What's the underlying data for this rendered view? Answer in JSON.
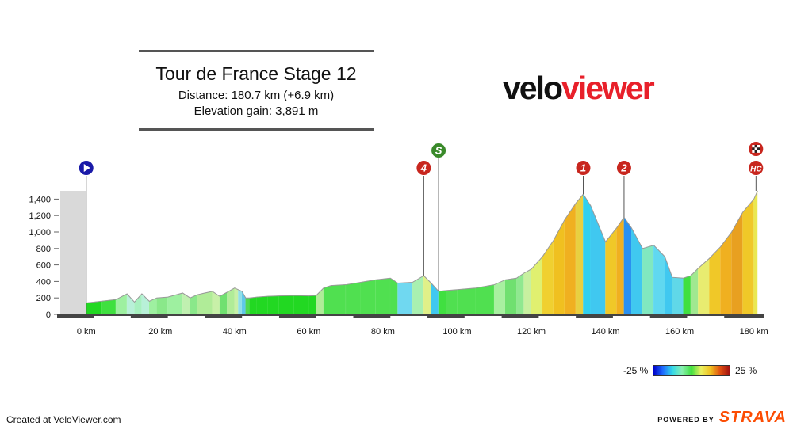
{
  "header": {
    "title": "Tour de France Stage 12",
    "distance": "Distance: 180.7 km (+6.9 km)",
    "elevation": "Elevation gain: 3,891 m"
  },
  "brand": {
    "logo_part1": "velo",
    "logo_part2": "viewer",
    "dark": "#111111",
    "red": "#e8202a"
  },
  "footer": {
    "created": "Created at VeloViewer.com",
    "powered": "POWERED BY",
    "strava": "STRAVA",
    "strava_color": "#fc4c02"
  },
  "legend": {
    "min_label": "-25 %",
    "max_label": "25 %"
  },
  "chart_data": {
    "type": "area",
    "xlabel": "",
    "ylabel": "",
    "xlim": [
      -7,
      182
    ],
    "ylim": [
      0,
      1500
    ],
    "x_ticks": [
      0,
      20,
      40,
      60,
      80,
      100,
      120,
      140,
      160,
      180
    ],
    "x_tick_labels": [
      "0 km",
      "20 km",
      "40 km",
      "60 km",
      "80 km",
      "100 km",
      "120 km",
      "140 km",
      "160 km",
      "180 km"
    ],
    "y_ticks": [
      0,
      200,
      400,
      600,
      800,
      1000,
      1200,
      1400
    ],
    "y_tick_labels": [
      "0",
      "200",
      "400",
      "600",
      "800",
      "1,000",
      "1,200",
      "1,400"
    ],
    "neutral_start": [
      -7,
      0
    ],
    "profile_km": [
      0,
      4,
      8,
      11,
      13,
      15,
      17,
      19,
      22,
      26,
      28,
      30,
      34,
      36,
      38,
      40,
      41,
      42,
      43,
      44,
      46,
      49,
      52,
      56,
      60,
      62,
      64,
      66,
      70,
      74,
      78,
      82,
      84,
      88,
      91,
      93,
      95,
      97,
      100,
      105,
      110,
      113,
      116,
      118,
      120,
      123,
      126,
      129,
      132,
      134,
      136,
      140,
      143,
      145,
      147,
      150,
      153,
      156,
      158,
      161,
      163,
      165,
      168,
      171,
      174,
      177,
      180,
      181
    ],
    "profile_elev": [
      140,
      160,
      180,
      250,
      150,
      250,
      160,
      200,
      210,
      260,
      200,
      240,
      280,
      220,
      270,
      320,
      300,
      280,
      200,
      200,
      210,
      220,
      225,
      230,
      225,
      230,
      320,
      350,
      360,
      390,
      420,
      440,
      380,
      390,
      470,
      380,
      280,
      290,
      300,
      320,
      360,
      420,
      440,
      500,
      550,
      700,
      900,
      1150,
      1350,
      1460,
      1320,
      880,
      1050,
      1180,
      1050,
      800,
      840,
      700,
      450,
      440,
      470,
      560,
      680,
      820,
      1000,
      1240,
      1400,
      1500
    ],
    "segment_colors": [
      "#22d822",
      "#3fe03f",
      "#9ef0a0",
      "#b8f0d8",
      "#a8f0c0",
      "#b8f0d8",
      "#9ef0a0",
      "#8ae88a",
      "#9ef0a0",
      "#c0f0b0",
      "#8ae88a",
      "#b0ec98",
      "#c8f0a8",
      "#70e070",
      "#b0ec98",
      "#c8f0a8",
      "#90e0e8",
      "#60c8e8",
      "#50d850",
      "#22d822",
      "#22d822",
      "#22d822",
      "#22d822",
      "#22d822",
      "#22d822",
      "#b0ec98",
      "#50e050",
      "#50e050",
      "#50e050",
      "#50e050",
      "#50e050",
      "#50e050",
      "#70d8f0",
      "#a8f0b0",
      "#e0f088",
      "#40c8f0",
      "#40e040",
      "#50e050",
      "#50e050",
      "#50e050",
      "#a8f0a0",
      "#70e070",
      "#90e890",
      "#c8f0a0",
      "#e0f070",
      "#f0d030",
      "#f0c020",
      "#f0b020",
      "#e8d040",
      "#30d0f0",
      "#40c8f0",
      "#f0c828",
      "#f0b020",
      "#2a90f0",
      "#40c8f0",
      "#80e8c0",
      "#60d8f0",
      "#40c8f0",
      "#60d8e8",
      "#40e040",
      "#a0e890",
      "#e8ec70",
      "#f0c828",
      "#f0b020",
      "#e8a020",
      "#f0c828",
      "#eae850"
    ],
    "markers": [
      {
        "km": 0,
        "label": "",
        "type": "start",
        "color": "#1a1aa8",
        "elev": 140
      },
      {
        "km": 91,
        "label": "4",
        "type": "climb",
        "color": "#c8261e",
        "elev": 470
      },
      {
        "km": 95,
        "label": "S",
        "type": "sprint",
        "color": "#3a8a2a",
        "elev": 280
      },
      {
        "km": 134,
        "label": "1",
        "type": "climb",
        "color": "#c8261e",
        "elev": 1460
      },
      {
        "km": 145,
        "label": "2",
        "type": "climb",
        "color": "#c8261e",
        "elev": 1180
      },
      {
        "km": 181,
        "label": "HC",
        "type": "climb",
        "color": "#c8261e",
        "elev": 1500
      },
      {
        "km": 181,
        "label": "",
        "type": "finish",
        "color": "#c8261e",
        "elev": 1500
      }
    ]
  }
}
